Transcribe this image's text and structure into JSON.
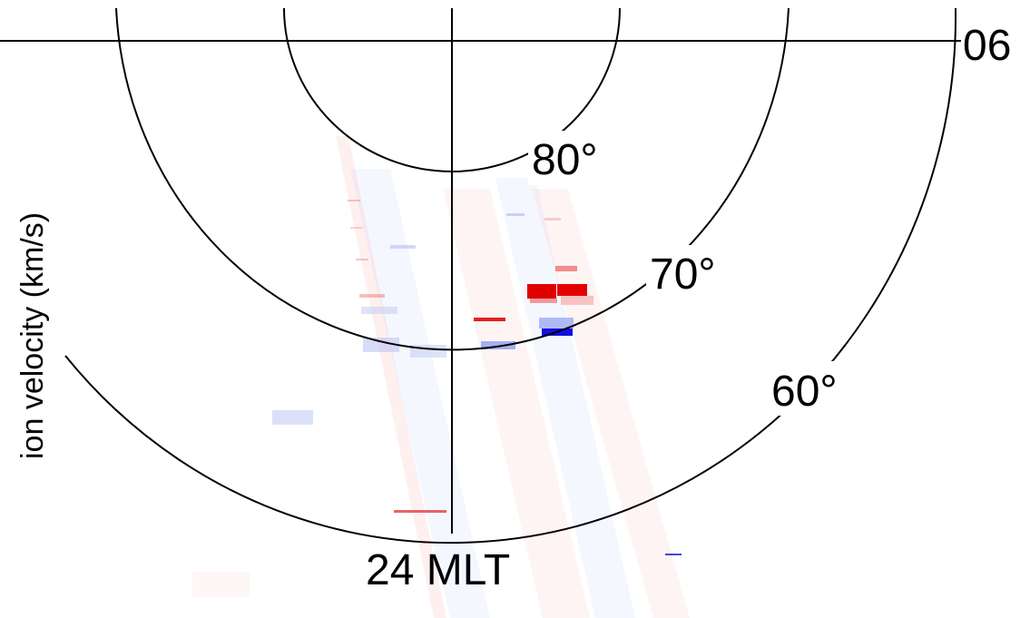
{
  "figure": {
    "y_axis_label": "ion velocity (km/s)",
    "mlt_bottom_label": "24 MLT",
    "mlt_right_label": "06",
    "latitude_labels": [
      "80°",
      "70°",
      "60°"
    ]
  },
  "colors": {
    "positive": "#e00000",
    "negative": "#1010e0",
    "grid": "#000000"
  }
}
